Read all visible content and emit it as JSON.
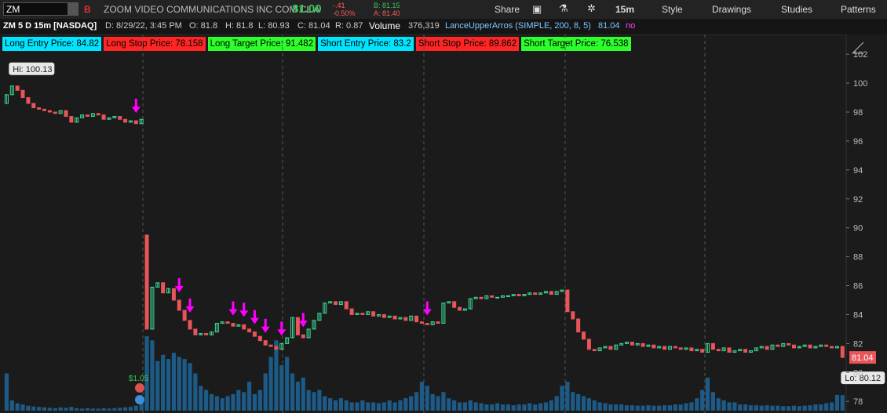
{
  "toolbar": {
    "symbol": "ZM",
    "name": "ZOOM VIDEO COMMUNICATIONS INC COM CL A",
    "last": "81.00",
    "change": "-.41",
    "change_pct": "-0.50%",
    "bid": "B: 81.15",
    "ask": "A: 81.40",
    "buttons": [
      "Share",
      "15m",
      "Style",
      "Drawings",
      "Studies",
      "Patterns"
    ]
  },
  "header": {
    "title": "ZM 5 D 15m [NASDAQ]",
    "date": "D: 8/29/22, 3:45 PM",
    "open": "O: 81.8",
    "high": "H: 81.8",
    "low": "L: 80.93",
    "close": "C: 81.04",
    "range": "R: 0.87",
    "volume_label": "Volume",
    "volume": "376,319",
    "study": "LanceUpperArros (SIMPLE, 200, 8, 5)",
    "study_value": "81.04",
    "study_flag": "no"
  },
  "labels": [
    {
      "text": "Long Entry Price: 84.82",
      "color": "#00e5ff"
    },
    {
      "text": "Long Stop Price: 78.158",
      "color": "#ff2525"
    },
    {
      "text": "Long Target Price: 91.482",
      "color": "#2cff2c"
    },
    {
      "text": "Short Entry Price: 83.2",
      "color": "#00e5ff"
    },
    {
      "text": "Short Stop Price: 89.862",
      "color": "#ff2525"
    },
    {
      "text": "Short Target Price: 76.538",
      "color": "#2cff2c"
    }
  ],
  "chart_data": {
    "type": "candlestick",
    "open": [
      98.6,
      99.2,
      99.8,
      99.5,
      99.0,
      98.6,
      98.3,
      98.2,
      98.1,
      98.0,
      97.9,
      98.1,
      97.7,
      97.3,
      97.6,
      97.8,
      97.7,
      97.9,
      97.8,
      97.5,
      97.6,
      97.7,
      97.5,
      97.3,
      97.4,
      97.2,
      89.5,
      83.0,
      85.9,
      86.2,
      85.5,
      85.8,
      85.0,
      84.3,
      83.6,
      83.0,
      82.6,
      82.7,
      82.6,
      82.8,
      83.4,
      83.5,
      83.4,
      83.2,
      83.3,
      83.0,
      82.8,
      82.5,
      82.2,
      81.9,
      81.8,
      81.6,
      82.0,
      82.4,
      83.8,
      82.6,
      82.4,
      83.0,
      83.6,
      84.1,
      84.8,
      84.9,
      84.7,
      84.9,
      84.4,
      84.0,
      84.1,
      84.0,
      84.2,
      83.9,
      84.0,
      83.8,
      83.9,
      83.7,
      83.8,
      83.6,
      83.9,
      83.5,
      83.4,
      83.3,
      83.5,
      83.4,
      84.8,
      84.9,
      84.5,
      84.3,
      84.4,
      85.1,
      85.2,
      85.1,
      85.3,
      85.2,
      85.2,
      85.3,
      85.3,
      85.4,
      85.3,
      85.4,
      85.5,
      85.4,
      85.5,
      85.6,
      85.4,
      85.6,
      85.7,
      84.2,
      83.7,
      82.8,
      82.3,
      81.6,
      81.5,
      81.7,
      81.8,
      81.6,
      81.9,
      82.0,
      82.1,
      81.9,
      82.0,
      81.8,
      81.9,
      81.7,
      81.8,
      81.6,
      81.8,
      81.7,
      81.6,
      81.7,
      81.5,
      81.6,
      81.4,
      82.0,
      81.6,
      81.5,
      81.7,
      81.4,
      81.5,
      81.6,
      81.4,
      81.5,
      81.7,
      81.8,
      81.6,
      81.9,
      81.8,
      82.0,
      81.9,
      81.7,
      81.8,
      81.9,
      81.7,
      81.8,
      81.9,
      81.8,
      81.7,
      81.8
    ],
    "close": [
      99.2,
      99.8,
      99.5,
      99.0,
      98.6,
      98.3,
      98.2,
      98.1,
      98.0,
      97.9,
      98.1,
      97.7,
      97.3,
      97.6,
      97.8,
      97.7,
      97.9,
      97.8,
      97.5,
      97.6,
      97.7,
      97.5,
      97.3,
      97.4,
      97.2,
      97.5,
      83.0,
      85.9,
      86.2,
      85.5,
      85.8,
      85.0,
      84.3,
      83.6,
      83.0,
      82.6,
      82.7,
      82.6,
      82.8,
      83.4,
      83.5,
      83.4,
      83.2,
      83.3,
      83.0,
      82.8,
      82.5,
      82.2,
      81.9,
      81.8,
      81.6,
      82.0,
      82.4,
      83.8,
      82.6,
      82.4,
      83.0,
      83.6,
      84.1,
      84.8,
      84.9,
      84.7,
      84.9,
      84.4,
      84.0,
      84.1,
      84.0,
      84.2,
      83.9,
      84.0,
      83.8,
      83.9,
      83.7,
      83.8,
      83.6,
      83.9,
      83.5,
      83.4,
      83.3,
      83.5,
      83.4,
      84.8,
      84.9,
      84.5,
      84.3,
      84.4,
      85.1,
      85.2,
      85.1,
      85.3,
      85.2,
      85.2,
      85.3,
      85.3,
      85.4,
      85.3,
      85.4,
      85.5,
      85.4,
      85.5,
      85.6,
      85.4,
      85.6,
      85.7,
      84.2,
      83.7,
      82.8,
      82.3,
      81.6,
      81.5,
      81.7,
      81.8,
      81.6,
      81.9,
      82.0,
      82.1,
      81.9,
      82.0,
      81.8,
      81.9,
      81.7,
      81.8,
      81.6,
      81.8,
      81.7,
      81.6,
      81.7,
      81.5,
      81.6,
      81.4,
      82.0,
      81.6,
      81.5,
      81.7,
      81.4,
      81.5,
      81.6,
      81.4,
      81.5,
      81.7,
      81.8,
      81.6,
      81.9,
      81.8,
      82.0,
      81.9,
      81.7,
      81.8,
      81.9,
      81.7,
      81.8,
      81.9,
      81.8,
      81.7,
      81.8,
      81.04
    ],
    "volume": [
      900000,
      250000,
      180000,
      150000,
      120000,
      100000,
      90000,
      80000,
      70000,
      60000,
      80000,
      70000,
      90000,
      60000,
      50000,
      60000,
      50000,
      50000,
      60000,
      50000,
      60000,
      70000,
      80000,
      90000,
      120000,
      300000,
      1800000,
      1700000,
      1200000,
      1350000,
      1250000,
      1400000,
      1300000,
      1250000,
      1150000,
      900000,
      600000,
      500000,
      400000,
      350000,
      300000,
      350000,
      400000,
      500000,
      450000,
      700000,
      400000,
      500000,
      900000,
      1300000,
      1700000,
      1100000,
      1300000,
      900000,
      700000,
      800000,
      500000,
      450000,
      500000,
      350000,
      300000,
      250000,
      300000,
      250000,
      200000,
      200000,
      250000,
      200000,
      200000,
      180000,
      200000,
      250000,
      200000,
      250000,
      300000,
      350000,
      450000,
      700000,
      600000,
      400000,
      350000,
      450000,
      300000,
      250000,
      200000,
      200000,
      250000,
      200000,
      180000,
      150000,
      150000,
      180000,
      150000,
      150000,
      130000,
      150000,
      150000,
      180000,
      150000,
      180000,
      200000,
      250000,
      350000,
      600000,
      700000,
      450000,
      400000,
      350000,
      300000,
      250000,
      200000,
      180000,
      150000,
      150000,
      150000,
      130000,
      130000,
      120000,
      120000,
      130000,
      120000,
      120000,
      130000,
      130000,
      150000,
      150000,
      180000,
      200000,
      300000,
      500000,
      800000,
      450000,
      300000,
      250000,
      200000,
      200000,
      150000,
      150000,
      130000,
      130000,
      120000,
      130000,
      120000,
      120000,
      110000,
      110000,
      120000,
      110000,
      120000,
      130000,
      150000,
      150000,
      180000,
      200000,
      380000,
      376319
    ],
    "up_color": "#3ddc97",
    "down_color": "#e8555a",
    "volume_color": "#1d5a85",
    "signal_color": "#ff00ff",
    "signals": [
      24,
      32,
      34,
      42,
      44,
      46,
      48,
      51,
      55,
      78
    ],
    "ylim": [
      77.2,
      103.2
    ],
    "yticks": [
      78,
      80,
      82,
      84,
      86,
      88,
      90,
      92,
      94,
      96,
      98,
      100,
      102
    ],
    "hi_label": "Hi: 100.13",
    "lo_label": "Lo: 80.12",
    "last_label": "81.04",
    "earnings_label": "$1.05"
  }
}
